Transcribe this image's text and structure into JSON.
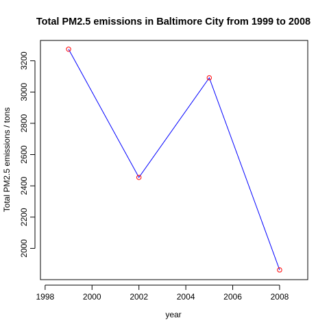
{
  "chart_data": {
    "type": "line",
    "title": "Total PM2.5 emissions in Baltimore City from 1999 to 2008",
    "xlabel": "year",
    "ylabel": "Total PM2.5 emissions / tons",
    "xlim": [
      1997.8,
      2009.2
    ],
    "ylim": [
      1800,
      3330
    ],
    "xticks": [
      1998,
      2000,
      2002,
      2004,
      2006,
      2008
    ],
    "yticks": [
      2000,
      2200,
      2400,
      2600,
      2800,
      3000,
      3200
    ],
    "xtick_labels": [
      "1998",
      "2000",
      "2002",
      "2004",
      "2006",
      "2008"
    ],
    "ytick_labels": [
      "2000",
      "2200",
      "2400",
      "2600",
      "2800",
      "3000",
      "3200"
    ],
    "series": [
      {
        "x": [
          1999,
          2002,
          2005,
          2008
        ],
        "values": [
          3274,
          2454,
          3091,
          1862
        ],
        "line_color": "#0000ff",
        "marker_color": "#ff0000"
      }
    ],
    "grid": false,
    "box": true
  }
}
